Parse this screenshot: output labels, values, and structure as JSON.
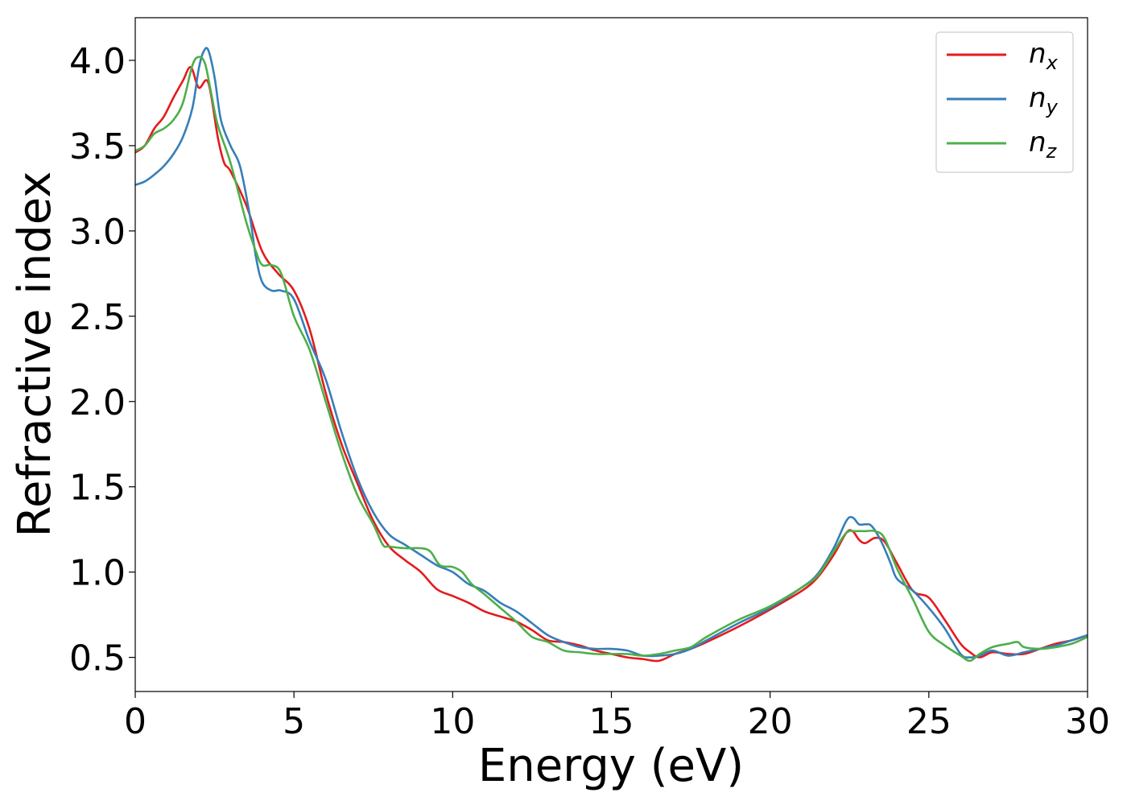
{
  "chart_data": {
    "type": "line",
    "title": "",
    "xlabel": "Energy (eV)",
    "ylabel": "Refractive index",
    "xlim": [
      0,
      30
    ],
    "ylim": [
      0.3,
      4.25
    ],
    "xticks": [
      0,
      5,
      10,
      15,
      20,
      25,
      30
    ],
    "xtick_labels": [
      "0",
      "5",
      "10",
      "15",
      "20",
      "25",
      "30"
    ],
    "yticks": [
      0.5,
      1.0,
      1.5,
      2.0,
      2.5,
      3.0,
      3.5,
      4.0
    ],
    "ytick_labels": [
      "0.5",
      "1.0",
      "1.5",
      "2.0",
      "2.5",
      "3.0",
      "3.5",
      "4.0"
    ],
    "grid": false,
    "legend_position": "top-right",
    "series": [
      {
        "name": "n_x",
        "label_base": "n",
        "label_sub": "x",
        "color": "#e41a1c",
        "x": [
          0,
          0.3,
          0.6,
          0.9,
          1.2,
          1.5,
          1.75,
          2.0,
          2.3,
          2.6,
          2.8,
          3.0,
          3.5,
          4.0,
          4.5,
          5.0,
          5.5,
          6.0,
          6.5,
          7.0,
          7.5,
          8.0,
          8.5,
          9.0,
          9.5,
          10.0,
          10.5,
          11.0,
          11.5,
          12.0,
          12.5,
          13.0,
          13.5,
          14.0,
          14.5,
          15.0,
          15.5,
          16.0,
          16.5,
          17.0,
          17.5,
          18.0,
          19.0,
          20.0,
          21.0,
          21.5,
          22.0,
          22.4,
          22.6,
          22.8,
          23.0,
          23.3,
          23.6,
          24.0,
          24.5,
          25.0,
          25.5,
          26.0,
          26.3,
          26.6,
          27.0,
          27.5,
          28.0,
          28.5,
          29.0,
          29.5,
          30.0
        ],
        "y": [
          3.46,
          3.5,
          3.6,
          3.67,
          3.78,
          3.88,
          3.96,
          3.84,
          3.87,
          3.55,
          3.4,
          3.35,
          3.15,
          2.88,
          2.75,
          2.65,
          2.42,
          2.05,
          1.75,
          1.52,
          1.3,
          1.15,
          1.07,
          1.0,
          0.9,
          0.86,
          0.82,
          0.77,
          0.74,
          0.71,
          0.66,
          0.6,
          0.59,
          0.57,
          0.54,
          0.52,
          0.5,
          0.49,
          0.48,
          0.52,
          0.55,
          0.59,
          0.68,
          0.78,
          0.89,
          0.97,
          1.1,
          1.23,
          1.24,
          1.19,
          1.17,
          1.2,
          1.18,
          1.05,
          0.89,
          0.85,
          0.72,
          0.58,
          0.53,
          0.5,
          0.53,
          0.52,
          0.52,
          0.55,
          0.58,
          0.6,
          0.63
        ]
      },
      {
        "name": "n_y",
        "label_base": "n",
        "label_sub": "y",
        "color": "#377eb8",
        "x": [
          0,
          0.3,
          0.6,
          0.9,
          1.2,
          1.5,
          1.8,
          2.0,
          2.15,
          2.3,
          2.5,
          2.7,
          3.0,
          3.3,
          3.6,
          3.8,
          4.0,
          4.3,
          4.6,
          5.0,
          5.5,
          6.0,
          6.5,
          7.0,
          7.5,
          8.0,
          8.5,
          9.0,
          9.5,
          10.0,
          10.5,
          11.0,
          11.5,
          12.0,
          12.5,
          13.0,
          13.5,
          14.0,
          14.5,
          15.0,
          15.5,
          16.0,
          16.5,
          17.0,
          17.5,
          18.0,
          19.0,
          20.0,
          21.0,
          21.5,
          22.0,
          22.4,
          22.6,
          22.8,
          23.0,
          23.2,
          23.5,
          23.8,
          24.0,
          24.5,
          25.0,
          25.5,
          26.0,
          26.3,
          26.6,
          27.0,
          27.5,
          28.0,
          28.5,
          29.0,
          29.5,
          30.0
        ],
        "y": [
          3.27,
          3.29,
          3.33,
          3.38,
          3.45,
          3.55,
          3.72,
          3.95,
          4.05,
          4.06,
          3.9,
          3.65,
          3.5,
          3.38,
          3.1,
          2.85,
          2.7,
          2.65,
          2.65,
          2.6,
          2.35,
          2.13,
          1.82,
          1.55,
          1.35,
          1.22,
          1.16,
          1.1,
          1.04,
          1.0,
          0.93,
          0.89,
          0.82,
          0.77,
          0.7,
          0.63,
          0.59,
          0.56,
          0.55,
          0.55,
          0.54,
          0.51,
          0.51,
          0.52,
          0.55,
          0.6,
          0.7,
          0.79,
          0.91,
          0.99,
          1.14,
          1.3,
          1.32,
          1.28,
          1.28,
          1.27,
          1.18,
          1.05,
          0.96,
          0.89,
          0.79,
          0.67,
          0.52,
          0.5,
          0.51,
          0.54,
          0.51,
          0.53,
          0.55,
          0.57,
          0.6,
          0.63
        ]
      },
      {
        "name": "n_z",
        "label_base": "n",
        "label_sub": "z",
        "color": "#4daf4a",
        "x": [
          0,
          0.3,
          0.6,
          0.9,
          1.2,
          1.5,
          1.8,
          2.0,
          2.2,
          2.4,
          2.6,
          3.0,
          3.5,
          3.8,
          4.0,
          4.3,
          4.6,
          5.0,
          5.5,
          6.0,
          6.5,
          7.0,
          7.5,
          7.8,
          8.0,
          8.5,
          9.0,
          9.3,
          9.6,
          10.0,
          10.3,
          10.6,
          11.0,
          11.5,
          12.0,
          12.5,
          13.0,
          13.5,
          14.0,
          14.5,
          15.0,
          15.5,
          16.0,
          16.5,
          17.0,
          17.5,
          18.0,
          19.0,
          20.0,
          21.0,
          21.5,
          22.0,
          22.4,
          22.7,
          23.0,
          23.3,
          23.6,
          24.0,
          24.5,
          25.0,
          25.5,
          26.0,
          26.3,
          26.6,
          27.0,
          27.5,
          27.8,
          28.0,
          28.5,
          29.0,
          29.5,
          30.0
        ],
        "y": [
          3.47,
          3.5,
          3.57,
          3.6,
          3.65,
          3.75,
          3.97,
          4.02,
          3.98,
          3.8,
          3.62,
          3.4,
          3.05,
          2.88,
          2.8,
          2.8,
          2.75,
          2.5,
          2.3,
          2.0,
          1.7,
          1.45,
          1.28,
          1.16,
          1.15,
          1.14,
          1.14,
          1.12,
          1.04,
          1.03,
          1.0,
          0.93,
          0.87,
          0.79,
          0.71,
          0.62,
          0.59,
          0.54,
          0.53,
          0.52,
          0.52,
          0.52,
          0.51,
          0.52,
          0.54,
          0.56,
          0.62,
          0.72,
          0.8,
          0.91,
          0.98,
          1.12,
          1.23,
          1.24,
          1.24,
          1.24,
          1.2,
          1.02,
          0.84,
          0.65,
          0.57,
          0.51,
          0.48,
          0.52,
          0.56,
          0.58,
          0.59,
          0.56,
          0.55,
          0.56,
          0.58,
          0.62
        ]
      }
    ]
  }
}
